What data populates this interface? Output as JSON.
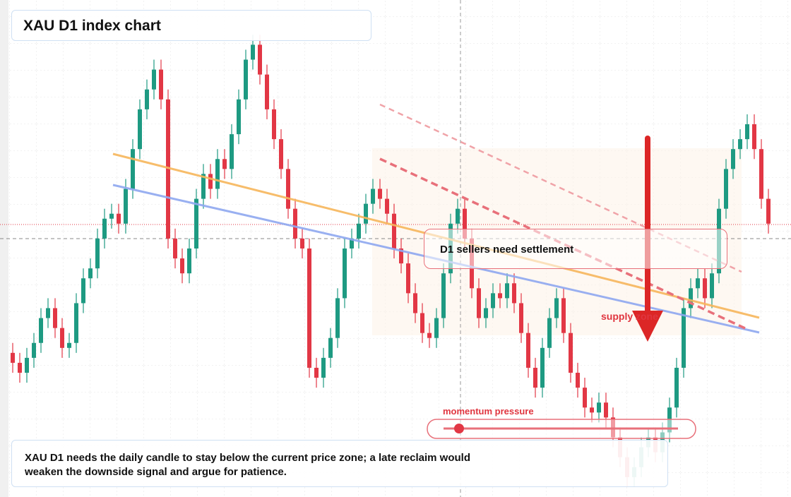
{
  "chart_data": {
    "type": "candlestick",
    "title": "XAU D1 index chart",
    "open": [
      29,
      27,
      25,
      28,
      31,
      36,
      38,
      34,
      30,
      31,
      39,
      44,
      46,
      52,
      56,
      57,
      55,
      62,
      70,
      78,
      82,
      86,
      80,
      52,
      48,
      45,
      50,
      60,
      65,
      62,
      68,
      66,
      73,
      80,
      88,
      91,
      85,
      78,
      72,
      66,
      58,
      52,
      50,
      26,
      24,
      28,
      32,
      40,
      50,
      52,
      55,
      59,
      62,
      60,
      57,
      50,
      47,
      41,
      37,
      33,
      32,
      36,
      45,
      55,
      58,
      52,
      42,
      36,
      38,
      41,
      40,
      43,
      39,
      33,
      26,
      22,
      30,
      36,
      40,
      33,
      25,
      22,
      18,
      17,
      19,
      16,
      12,
      8,
      4,
      6,
      10,
      12,
      9,
      13,
      18,
      26,
      38,
      42,
      44,
      40,
      45,
      58,
      66,
      70,
      72,
      75,
      70,
      60
    ],
    "high": [
      31,
      29,
      30,
      33,
      38,
      40,
      40,
      36,
      33,
      41,
      46,
      48,
      54,
      58,
      59,
      59,
      64,
      72,
      80,
      84,
      88,
      88,
      82,
      54,
      50,
      52,
      62,
      67,
      67,
      70,
      70,
      75,
      82,
      90,
      93,
      93,
      87,
      80,
      74,
      68,
      60,
      54,
      52,
      28,
      30,
      34,
      42,
      52,
      54,
      57,
      61,
      64,
      64,
      62,
      59,
      52,
      49,
      43,
      39,
      35,
      38,
      47,
      57,
      60,
      60,
      54,
      44,
      40,
      43,
      43,
      45,
      45,
      41,
      35,
      28,
      32,
      38,
      42,
      42,
      35,
      27,
      24,
      20,
      21,
      21,
      18,
      14,
      10,
      8,
      12,
      14,
      14,
      15,
      20,
      28,
      40,
      44,
      46,
      46,
      47,
      60,
      68,
      72,
      74,
      77,
      77,
      72,
      62
    ],
    "low": [
      25,
      23,
      23,
      26,
      29,
      34,
      32,
      28,
      28,
      29,
      37,
      42,
      44,
      50,
      54,
      53,
      53,
      60,
      68,
      76,
      80,
      78,
      50,
      46,
      43,
      43,
      48,
      58,
      60,
      60,
      64,
      64,
      71,
      78,
      86,
      83,
      76,
      70,
      64,
      56,
      50,
      48,
      24,
      22,
      22,
      26,
      30,
      38,
      48,
      50,
      53,
      57,
      58,
      55,
      48,
      45,
      39,
      35,
      31,
      30,
      30,
      34,
      43,
      53,
      50,
      40,
      34,
      34,
      36,
      38,
      38,
      37,
      31,
      24,
      20,
      20,
      28,
      34,
      31,
      23,
      20,
      16,
      15,
      15,
      14,
      10,
      6,
      2,
      2,
      4,
      8,
      7,
      7,
      11,
      16,
      24,
      36,
      40,
      38,
      38,
      43,
      56,
      64,
      68,
      70,
      68,
      58,
      53
    ],
    "close": [
      27,
      25,
      28,
      31,
      36,
      38,
      34,
      30,
      31,
      39,
      44,
      46,
      52,
      56,
      57,
      55,
      62,
      70,
      78,
      82,
      86,
      80,
      52,
      48,
      45,
      50,
      60,
      65,
      62,
      68,
      66,
      73,
      80,
      88,
      91,
      85,
      78,
      72,
      66,
      58,
      52,
      50,
      26,
      24,
      28,
      32,
      40,
      50,
      52,
      55,
      59,
      62,
      60,
      57,
      50,
      47,
      41,
      37,
      33,
      32,
      36,
      45,
      55,
      58,
      52,
      42,
      36,
      38,
      41,
      40,
      43,
      39,
      33,
      26,
      22,
      30,
      36,
      40,
      33,
      25,
      22,
      18,
      17,
      19,
      16,
      12,
      8,
      4,
      6,
      10,
      12,
      9,
      13,
      18,
      26,
      38,
      42,
      44,
      40,
      45,
      58,
      66,
      70,
      72,
      75,
      70,
      60,
      55
    ],
    "up_color": "#1e9a82",
    "down_color": "#e23745",
    "ylim": [
      0,
      100
    ],
    "annotations": {
      "settlement": "D1 sellers need settlement",
      "zone": "supply zone",
      "momentum": "momentum pressure"
    },
    "note": "XAU D1 needs the daily candle to stay below the current price zone; a late reclaim would weaken the downside signal and argue for patience."
  }
}
